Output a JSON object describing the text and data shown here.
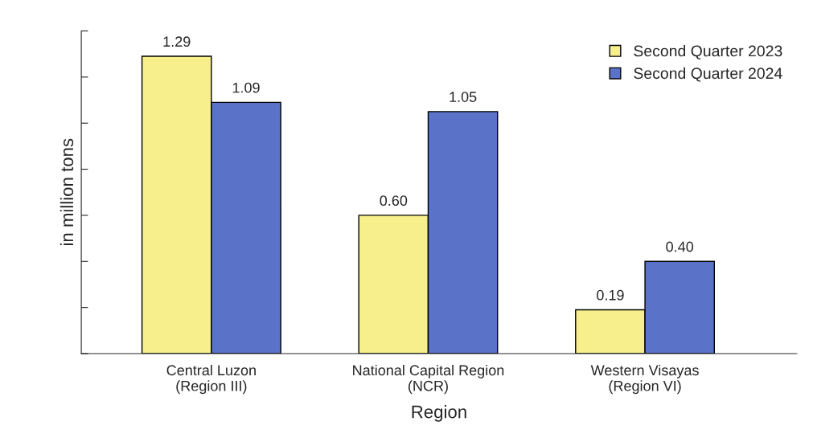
{
  "chart_data": {
    "type": "bar",
    "xlabel": "Region",
    "ylabel": "in million tons",
    "categories": [
      "Central Luzon\n(Region III)",
      "National Capital Region\n(NCR)",
      "Western Visayas\n(Region VI)"
    ],
    "series": [
      {
        "name": "Second Quarter 2023",
        "color": "#f6ef8c",
        "values": [
          1.29,
          0.6,
          0.19
        ],
        "value_labels": [
          "1.29",
          "0.60",
          "0.19"
        ]
      },
      {
        "name": "Second Quarter 2024",
        "color": "#5a72c8",
        "values": [
          1.09,
          1.05,
          0.4
        ],
        "value_labels": [
          "1.09",
          "1.05",
          "0.40"
        ]
      }
    ],
    "ylim": [
      0,
      1.4
    ],
    "yticks": [
      {
        "value": 0,
        "label": null
      },
      {
        "value": 0.2,
        "label": null
      },
      {
        "value": 0.4,
        "label": null
      },
      {
        "value": 0.6,
        "label": null
      },
      {
        "value": 0.8,
        "label": null
      },
      {
        "value": 1.0,
        "label": null
      },
      {
        "value": 1.2,
        "label": null
      },
      {
        "value": 1.4,
        "label": null
      }
    ],
    "tick_labels": "x",
    "legend": "top right",
    "grid": false
  }
}
